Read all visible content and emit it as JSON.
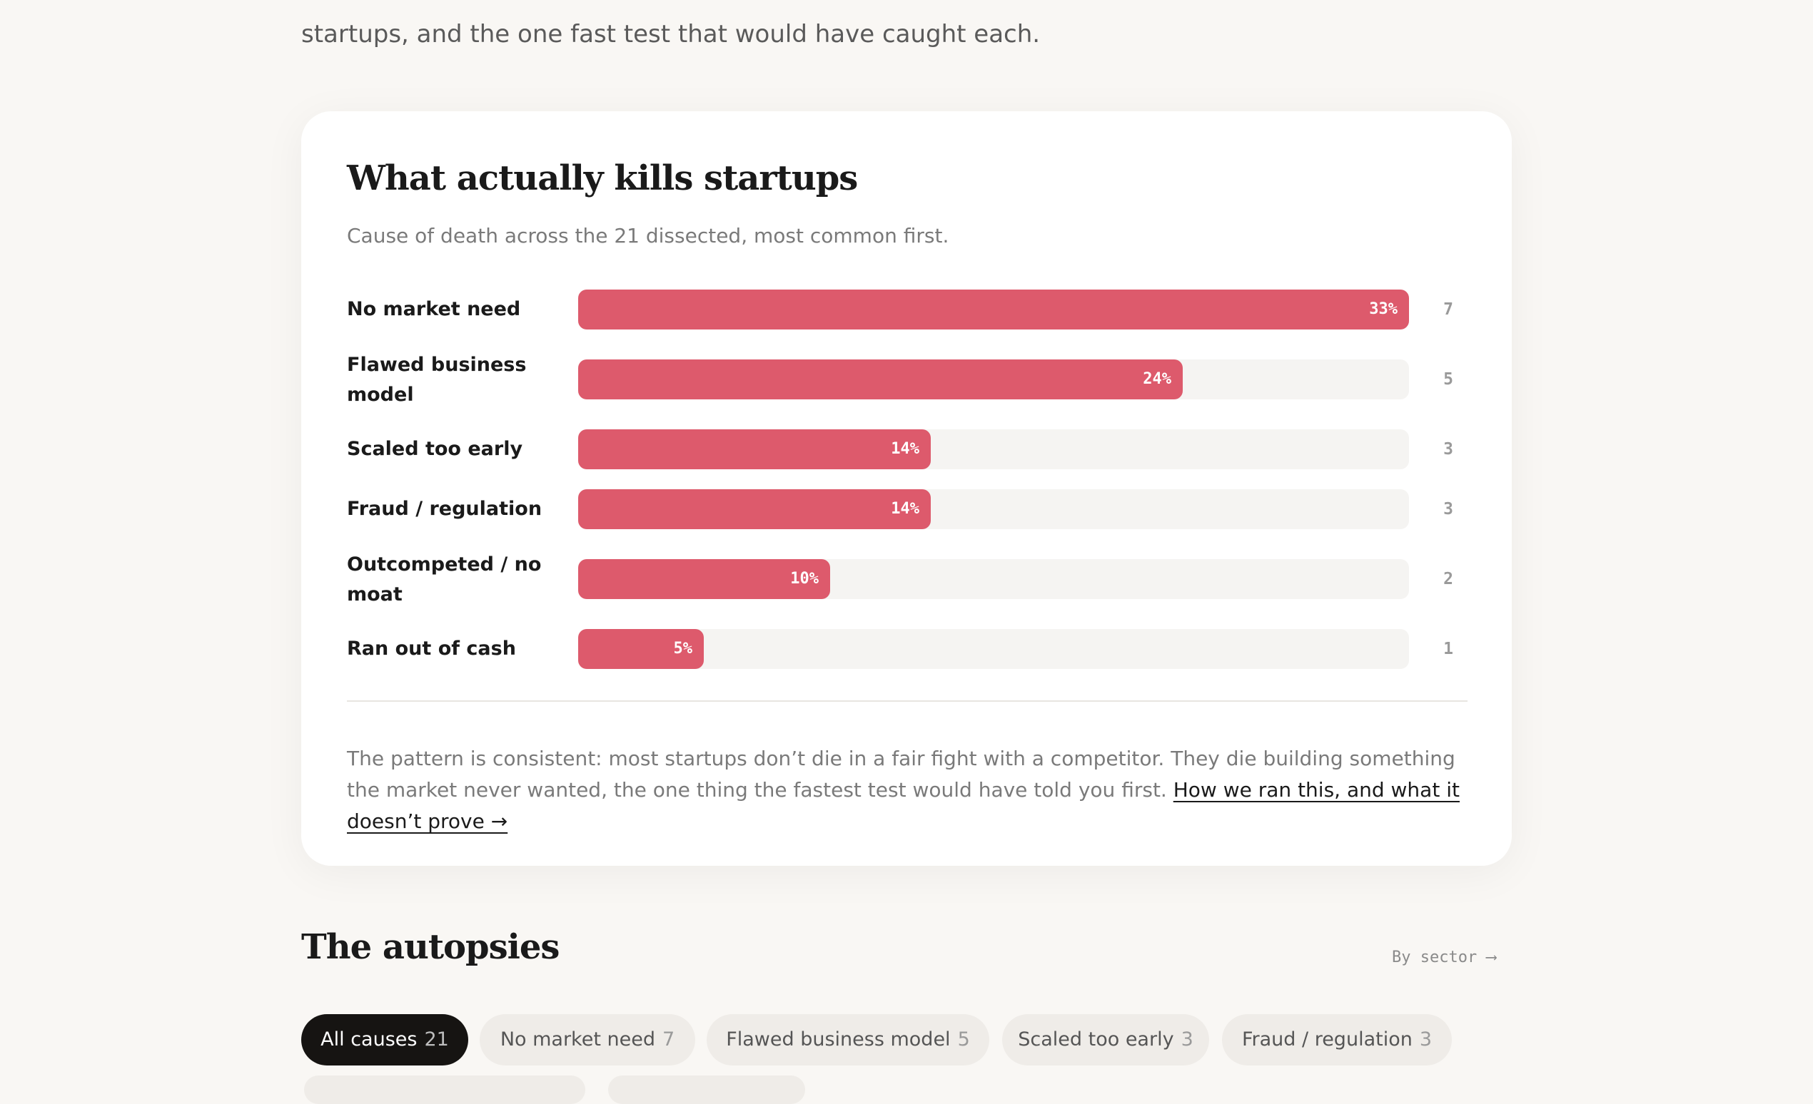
{
  "intro_text": "startups, and the one fast test that would have caught each.",
  "card": {
    "title": "What actually kills startups",
    "subtitle": "Cause of death across the 21 dissected, most common first.",
    "footnote_text": "The pattern is consistent: most startups don’t die in a fair fight with a competitor. They die building something the market never wanted, the one thing the fastest test would have told you first. ",
    "footnote_link": "How we ran this, and what it doesn’t prove →"
  },
  "chart_data": {
    "type": "bar",
    "orientation": "horizontal",
    "title": "What actually kills startups",
    "subtitle": "Cause of death across the 21 dissected, most common first.",
    "categories": [
      "No market need",
      "Flawed business model",
      "Scaled too early",
      "Fraud / regulation",
      "Outcompeted / no moat",
      "Ran out of cash"
    ],
    "percent_labels": [
      "33%",
      "24%",
      "14%",
      "14%",
      "10%",
      "5%"
    ],
    "values": [
      33,
      24,
      14,
      14,
      10,
      5
    ],
    "counts": [
      "7",
      "5",
      "3",
      "3",
      "2",
      "1"
    ],
    "xlim": [
      0,
      33
    ],
    "colors": {
      "bar": "#dd5a6c",
      "track": "#f5f4f2"
    }
  },
  "section": {
    "title": "The autopsies",
    "by_sector_label": "By sector ⟶"
  },
  "filters": [
    {
      "label": "All causes",
      "count": "21",
      "active": true
    },
    {
      "label": "No market need",
      "count": "7",
      "active": false
    },
    {
      "label": "Flawed business model",
      "count": "5",
      "active": false
    },
    {
      "label": "Scaled too early",
      "count": "3",
      "active": false
    },
    {
      "label": "Fraud / regulation",
      "count": "3",
      "active": false
    }
  ],
  "colors": {
    "accent": "#dd5a6c",
    "page_bg": "#f9f7f4",
    "chip_active_bg": "#161412"
  }
}
